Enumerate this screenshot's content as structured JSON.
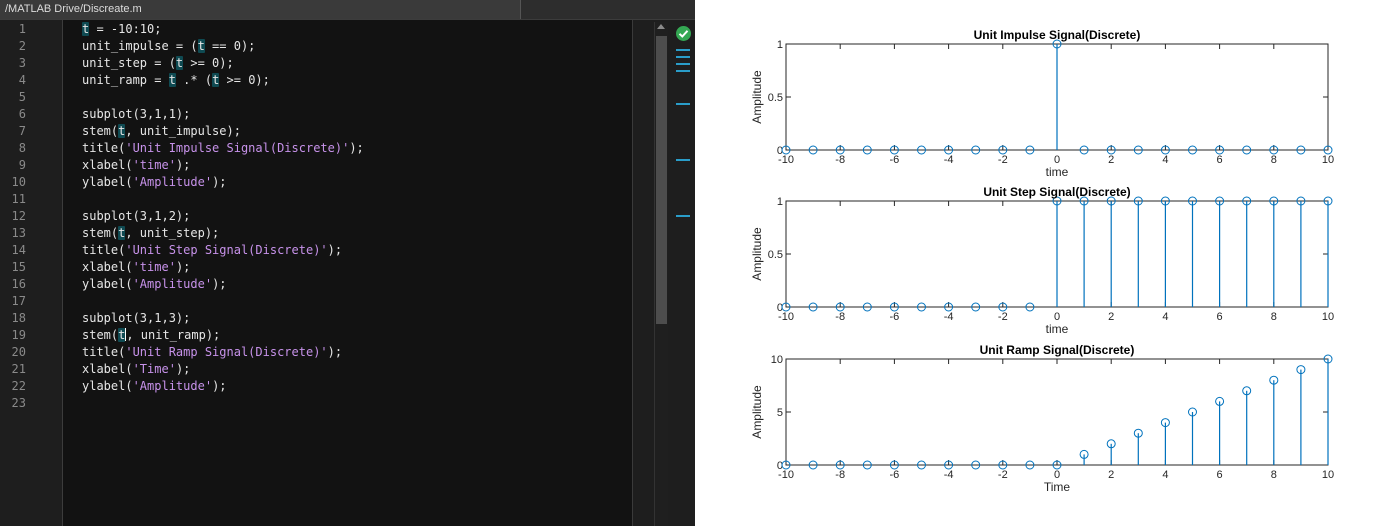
{
  "editor": {
    "file_path": "/MATLAB Drive/Discreate.m",
    "line_numbers": [
      "1",
      "2",
      "3",
      "4",
      "5",
      "6",
      "7",
      "8",
      "9",
      "10",
      "11",
      "12",
      "13",
      "14",
      "15",
      "16",
      "17",
      "18",
      "19",
      "20",
      "21",
      "22",
      "23"
    ],
    "lines": [
      [
        {
          "t": "t",
          "k": "hl"
        },
        {
          "t": " = -10:10;"
        }
      ],
      [
        {
          "t": "unit_impulse = ("
        },
        {
          "t": "t",
          "k": "hl"
        },
        {
          "t": " == 0);"
        }
      ],
      [
        {
          "t": "unit_step = ("
        },
        {
          "t": "t",
          "k": "hl"
        },
        {
          "t": " >= 0);"
        }
      ],
      [
        {
          "t": "unit_ramp = "
        },
        {
          "t": "t",
          "k": "hl"
        },
        {
          "t": " .* ("
        },
        {
          "t": "t",
          "k": "hl"
        },
        {
          "t": " >= 0);"
        }
      ],
      [],
      [
        {
          "t": "subplot(3,1,1);"
        }
      ],
      [
        {
          "t": "stem("
        },
        {
          "t": "t",
          "k": "hl"
        },
        {
          "t": ", unit_impulse);"
        }
      ],
      [
        {
          "t": "title("
        },
        {
          "t": "'Unit Impulse Signal(Discrete)'",
          "k": "str"
        },
        {
          "t": ");"
        }
      ],
      [
        {
          "t": "xlabel("
        },
        {
          "t": "'time'",
          "k": "str"
        },
        {
          "t": ");"
        }
      ],
      [
        {
          "t": "ylabel("
        },
        {
          "t": "'Amplitude'",
          "k": "str"
        },
        {
          "t": ");"
        }
      ],
      [],
      [
        {
          "t": "subplot(3,1,2);"
        }
      ],
      [
        {
          "t": "stem("
        },
        {
          "t": "t",
          "k": "hl"
        },
        {
          "t": ", unit_step);"
        }
      ],
      [
        {
          "t": "title("
        },
        {
          "t": "'Unit Step Signal(Discrete)'",
          "k": "str"
        },
        {
          "t": ");"
        }
      ],
      [
        {
          "t": "xlabel("
        },
        {
          "t": "'time'",
          "k": "str"
        },
        {
          "t": ");"
        }
      ],
      [
        {
          "t": "ylabel("
        },
        {
          "t": "'Amplitude'",
          "k": "str"
        },
        {
          "t": ");"
        }
      ],
      [],
      [
        {
          "t": "subplot(3,1,3);"
        }
      ],
      [
        {
          "t": "stem("
        },
        {
          "t": "t",
          "k": "hl"
        },
        {
          "t": "",
          "k": "caret"
        },
        {
          "t": ", unit_ramp);"
        }
      ],
      [
        {
          "t": "title("
        },
        {
          "t": "'Unit Ramp Signal(Discrete)'",
          "k": "str"
        },
        {
          "t": ");"
        }
      ],
      [
        {
          "t": "xlabel("
        },
        {
          "t": "'Time'",
          "k": "str"
        },
        {
          "t": ");"
        }
      ],
      [
        {
          "t": "ylabel("
        },
        {
          "t": "'Amplitude'",
          "k": "str"
        },
        {
          "t": ");"
        }
      ],
      []
    ],
    "analyzer_status_icon": "check-circle-icon",
    "colors": {
      "highlight": "#0f4a52",
      "string": "#c792ea",
      "analyzer_mark": "#2a9dc9",
      "ok": "#34a853"
    }
  },
  "chart_data": [
    {
      "type": "stem",
      "title": "Unit Impulse Signal(Discrete)",
      "xlabel": "time",
      "ylabel": "Amplitude",
      "x": [
        -10,
        -9,
        -8,
        -7,
        -6,
        -5,
        -4,
        -3,
        -2,
        -1,
        0,
        1,
        2,
        3,
        4,
        5,
        6,
        7,
        8,
        9,
        10
      ],
      "values": [
        0,
        0,
        0,
        0,
        0,
        0,
        0,
        0,
        0,
        0,
        1,
        0,
        0,
        0,
        0,
        0,
        0,
        0,
        0,
        0,
        0
      ],
      "xlim": [
        -10,
        10
      ],
      "ylim": [
        0,
        1
      ],
      "xticks": [
        "-10",
        "-8",
        "-6",
        "-4",
        "-2",
        "0",
        "2",
        "4",
        "6",
        "8",
        "10"
      ],
      "yticks": [
        "0",
        "0.5",
        "1"
      ],
      "color": "#0072bd"
    },
    {
      "type": "stem",
      "title": "Unit Step Signal(Discrete)",
      "xlabel": "time",
      "ylabel": "Amplitude",
      "x": [
        -10,
        -9,
        -8,
        -7,
        -6,
        -5,
        -4,
        -3,
        -2,
        -1,
        0,
        1,
        2,
        3,
        4,
        5,
        6,
        7,
        8,
        9,
        10
      ],
      "values": [
        0,
        0,
        0,
        0,
        0,
        0,
        0,
        0,
        0,
        0,
        1,
        1,
        1,
        1,
        1,
        1,
        1,
        1,
        1,
        1,
        1
      ],
      "xlim": [
        -10,
        10
      ],
      "ylim": [
        0,
        1
      ],
      "xticks": [
        "-10",
        "-8",
        "-6",
        "-4",
        "-2",
        "0",
        "2",
        "4",
        "6",
        "8",
        "10"
      ],
      "yticks": [
        "0",
        "0.5",
        "1"
      ],
      "color": "#0072bd"
    },
    {
      "type": "stem",
      "title": "Unit Ramp Signal(Discrete)",
      "xlabel": "Time",
      "ylabel": "Amplitude",
      "x": [
        -10,
        -9,
        -8,
        -7,
        -6,
        -5,
        -4,
        -3,
        -2,
        -1,
        0,
        1,
        2,
        3,
        4,
        5,
        6,
        7,
        8,
        9,
        10
      ],
      "values": [
        0,
        0,
        0,
        0,
        0,
        0,
        0,
        0,
        0,
        0,
        0,
        1,
        2,
        3,
        4,
        5,
        6,
        7,
        8,
        9,
        10
      ],
      "xlim": [
        -10,
        10
      ],
      "ylim": [
        0,
        10
      ],
      "xticks": [
        "-10",
        "-8",
        "-6",
        "-4",
        "-2",
        "0",
        "2",
        "4",
        "6",
        "8",
        "10"
      ],
      "yticks": [
        "0",
        "5",
        "10"
      ],
      "color": "#0072bd"
    }
  ]
}
